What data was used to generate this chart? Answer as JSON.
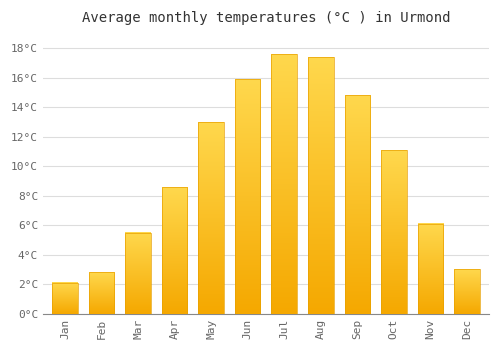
{
  "title": "Average monthly temperatures (°C ) in Urmond",
  "months": [
    "Jan",
    "Feb",
    "Mar",
    "Apr",
    "May",
    "Jun",
    "Jul",
    "Aug",
    "Sep",
    "Oct",
    "Nov",
    "Dec"
  ],
  "values": [
    2.1,
    2.8,
    5.5,
    8.6,
    13.0,
    15.9,
    17.6,
    17.4,
    14.8,
    11.1,
    6.1,
    3.0
  ],
  "ylim": [
    0,
    19
  ],
  "yticks": [
    0,
    2,
    4,
    6,
    8,
    10,
    12,
    14,
    16,
    18
  ],
  "ytick_labels": [
    "0°C",
    "2°C",
    "4°C",
    "6°C",
    "8°C",
    "10°C",
    "12°C",
    "14°C",
    "16°C",
    "18°C"
  ],
  "background_color": "#FFFFFF",
  "grid_color": "#DDDDDD",
  "bar_color_bottom": "#F5A800",
  "bar_color_top": "#FFD84D",
  "bar_edge_color": "#E8A000",
  "title_fontsize": 10,
  "tick_fontsize": 8,
  "font_family": "monospace"
}
